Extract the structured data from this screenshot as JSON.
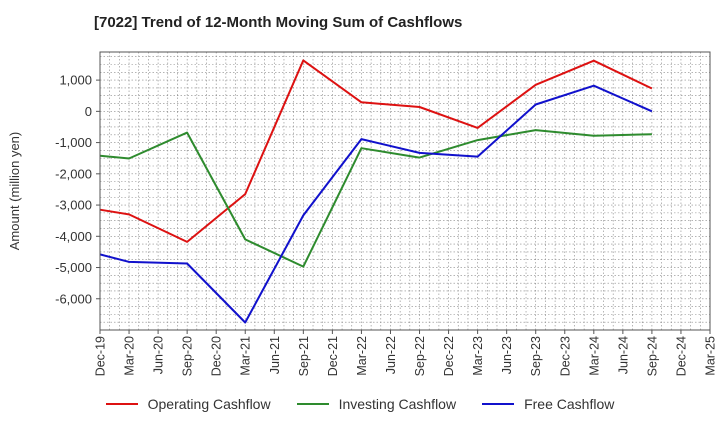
{
  "chart_data": {
    "type": "line",
    "title": "[7022]  Trend of 12-Month Moving Sum of Cashflows",
    "xlabel": "",
    "ylabel": "Amount (million yen)",
    "categories": [
      "Dec-19",
      "Mar-20",
      "Jun-20",
      "Sep-20",
      "Dec-20",
      "Mar-21",
      "Jun-21",
      "Sep-21",
      "Dec-21",
      "Mar-22",
      "Jun-22",
      "Sep-22",
      "Dec-22",
      "Mar-23",
      "Jun-23",
      "Sep-23",
      "Dec-23",
      "Mar-24",
      "Jun-24",
      "Sep-24",
      "Dec-24",
      "Mar-25"
    ],
    "ylim": [
      -7000,
      1900
    ],
    "yticks": [
      1000,
      0,
      -1000,
      -2000,
      -3000,
      -4000,
      -5000,
      -6000
    ],
    "ytick_labels": [
      "1,000",
      "0",
      "-1,000",
      "-2,000",
      "-3,000",
      "-4,000",
      "-5,000",
      "-6,000"
    ],
    "grid": true,
    "legend_position": "bottom",
    "series": [
      {
        "name": "Operating Cashflow",
        "color": "#dd1111",
        "points": [
          [
            "Dec-19",
            -3150
          ],
          [
            "Mar-20",
            -3300
          ],
          [
            "Sep-20",
            -4180
          ],
          [
            "Mar-21",
            -2650
          ],
          [
            "Sep-21",
            1630
          ],
          [
            "Mar-22",
            290
          ],
          [
            "Sep-22",
            140
          ],
          [
            "Mar-23",
            -530
          ],
          [
            "Sep-23",
            850
          ],
          [
            "Mar-24",
            1620
          ],
          [
            "Sep-24",
            730
          ]
        ]
      },
      {
        "name": "Investing Cashflow",
        "color": "#2e8b2e",
        "points": [
          [
            "Dec-19",
            -1420
          ],
          [
            "Mar-20",
            -1510
          ],
          [
            "Sep-20",
            -680
          ],
          [
            "Mar-21",
            -4100
          ],
          [
            "Sep-21",
            -4970
          ],
          [
            "Mar-22",
            -1180
          ],
          [
            "Sep-22",
            -1480
          ],
          [
            "Mar-23",
            -920
          ],
          [
            "Sep-23",
            -600
          ],
          [
            "Mar-24",
            -780
          ],
          [
            "Sep-24",
            -730
          ]
        ]
      },
      {
        "name": "Free Cashflow",
        "color": "#1111cc",
        "points": [
          [
            "Dec-19",
            -4580
          ],
          [
            "Mar-20",
            -4820
          ],
          [
            "Sep-20",
            -4870
          ],
          [
            "Mar-21",
            -6760
          ],
          [
            "Sep-21",
            -3330
          ],
          [
            "Mar-22",
            -890
          ],
          [
            "Sep-22",
            -1330
          ],
          [
            "Mar-23",
            -1450
          ],
          [
            "Sep-23",
            220
          ],
          [
            "Mar-24",
            820
          ],
          [
            "Sep-24",
            0
          ]
        ]
      }
    ]
  }
}
